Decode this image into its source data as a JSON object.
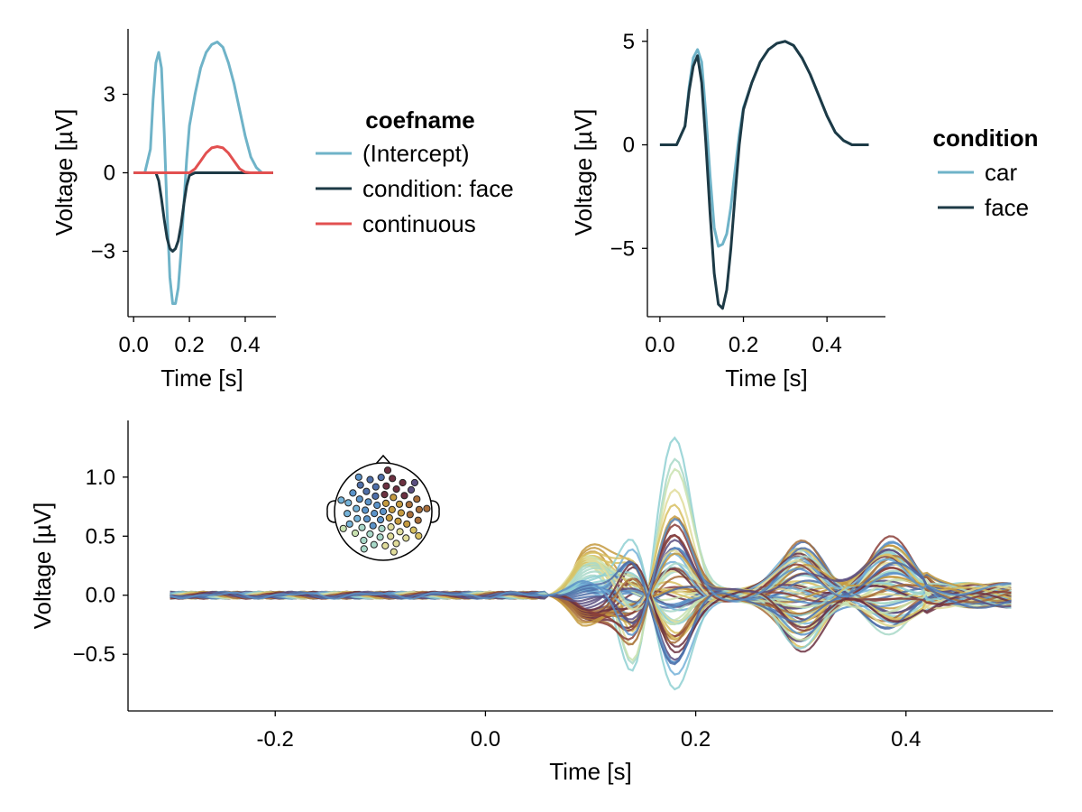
{
  "chart_data": [
    {
      "id": "coef",
      "type": "line",
      "xlabel": "Time [s]",
      "ylabel": "Voltage [µV]",
      "xlim": [
        -0.02,
        0.51
      ],
      "ylim": [
        -5.5,
        5.5
      ],
      "xticks": [
        0.0,
        0.2,
        0.4
      ],
      "xtick_labels": [
        "0.0",
        "0.2",
        "0.4"
      ],
      "yticks": [
        -3,
        0,
        3
      ],
      "ytick_labels": [
        "−3",
        "0",
        "3"
      ],
      "grid": false,
      "legend_title": "coefname",
      "legend_position": "right",
      "series": [
        {
          "name": "(Intercept)",
          "color": "#6fb3c8",
          "points": [
            [
              0,
              0
            ],
            [
              0.02,
              0
            ],
            [
              0.04,
              0
            ],
            [
              0.06,
              0.9
            ],
            [
              0.07,
              2.8
            ],
            [
              0.08,
              4.2
            ],
            [
              0.09,
              4.6
            ],
            [
              0.1,
              4.0
            ],
            [
              0.11,
              1.5
            ],
            [
              0.12,
              -1.5
            ],
            [
              0.13,
              -4.0
            ],
            [
              0.14,
              -5.0
            ],
            [
              0.15,
              -5.0
            ],
            [
              0.16,
              -4.4
            ],
            [
              0.17,
              -3.0
            ],
            [
              0.18,
              -1.2
            ],
            [
              0.19,
              0.5
            ],
            [
              0.2,
              1.8
            ],
            [
              0.22,
              3.0
            ],
            [
              0.24,
              4.0
            ],
            [
              0.26,
              4.6
            ],
            [
              0.28,
              4.9
            ],
            [
              0.3,
              5.0
            ],
            [
              0.32,
              4.8
            ],
            [
              0.34,
              4.2
            ],
            [
              0.36,
              3.4
            ],
            [
              0.38,
              2.4
            ],
            [
              0.4,
              1.4
            ],
            [
              0.42,
              0.6
            ],
            [
              0.44,
              0.2
            ],
            [
              0.46,
              0
            ],
            [
              0.5,
              0
            ]
          ]
        },
        {
          "name": "condition: face",
          "color": "#1d3a46",
          "points": [
            [
              0,
              0
            ],
            [
              0.08,
              0
            ],
            [
              0.09,
              -0.3
            ],
            [
              0.1,
              -1.0
            ],
            [
              0.11,
              -1.8
            ],
            [
              0.12,
              -2.5
            ],
            [
              0.13,
              -2.9
            ],
            [
              0.14,
              -3.0
            ],
            [
              0.15,
              -2.9
            ],
            [
              0.16,
              -2.6
            ],
            [
              0.17,
              -2.0
            ],
            [
              0.18,
              -1.2
            ],
            [
              0.19,
              -0.5
            ],
            [
              0.2,
              -0.1
            ],
            [
              0.22,
              0
            ],
            [
              0.5,
              0
            ]
          ]
        },
        {
          "name": "continuous",
          "color": "#e25050",
          "points": [
            [
              0,
              0
            ],
            [
              0.2,
              0
            ],
            [
              0.22,
              0.15
            ],
            [
              0.24,
              0.45
            ],
            [
              0.26,
              0.75
            ],
            [
              0.28,
              0.95
            ],
            [
              0.3,
              1.0
            ],
            [
              0.32,
              0.95
            ],
            [
              0.34,
              0.75
            ],
            [
              0.36,
              0.45
            ],
            [
              0.38,
              0.15
            ],
            [
              0.4,
              0.02
            ],
            [
              0.42,
              0
            ],
            [
              0.5,
              0
            ]
          ]
        }
      ]
    },
    {
      "id": "cond",
      "type": "line",
      "xlabel": "Time [s]",
      "ylabel": "Voltage [µV]",
      "xlim": [
        -0.03,
        0.54
      ],
      "ylim": [
        -8.3,
        5.6
      ],
      "xticks": [
        0.0,
        0.2,
        0.4
      ],
      "xtick_labels": [
        "0.0",
        "0.2",
        "0.4"
      ],
      "yticks": [
        -5,
        0,
        5
      ],
      "ytick_labels": [
        "−5",
        "0",
        "5"
      ],
      "grid": false,
      "legend_title": "condition",
      "legend_position": "right",
      "series": [
        {
          "name": "car",
          "color": "#6fb3c8",
          "points": [
            [
              0,
              0
            ],
            [
              0.04,
              0
            ],
            [
              0.06,
              0.9
            ],
            [
              0.07,
              2.8
            ],
            [
              0.08,
              4.2
            ],
            [
              0.09,
              4.6
            ],
            [
              0.1,
              4.0
            ],
            [
              0.11,
              1.5
            ],
            [
              0.12,
              -1.5
            ],
            [
              0.13,
              -4.0
            ],
            [
              0.14,
              -4.9
            ],
            [
              0.15,
              -4.8
            ],
            [
              0.16,
              -4.3
            ],
            [
              0.17,
              -3.0
            ],
            [
              0.18,
              -1.2
            ],
            [
              0.19,
              0.5
            ],
            [
              0.2,
              1.8
            ],
            [
              0.22,
              3.0
            ],
            [
              0.24,
              4.0
            ],
            [
              0.26,
              4.6
            ],
            [
              0.28,
              4.9
            ],
            [
              0.3,
              5.0
            ],
            [
              0.32,
              4.8
            ],
            [
              0.34,
              4.2
            ],
            [
              0.36,
              3.4
            ],
            [
              0.38,
              2.4
            ],
            [
              0.4,
              1.4
            ],
            [
              0.42,
              0.6
            ],
            [
              0.44,
              0.2
            ],
            [
              0.46,
              0
            ],
            [
              0.5,
              0
            ]
          ]
        },
        {
          "name": "face",
          "color": "#1d3a46",
          "points": [
            [
              0,
              0
            ],
            [
              0.04,
              0
            ],
            [
              0.06,
              0.9
            ],
            [
              0.07,
              2.6
            ],
            [
              0.08,
              3.8
            ],
            [
              0.09,
              4.3
            ],
            [
              0.1,
              3.0
            ],
            [
              0.11,
              0.1
            ],
            [
              0.12,
              -3.3
            ],
            [
              0.13,
              -6.2
            ],
            [
              0.14,
              -7.7
            ],
            [
              0.15,
              -7.9
            ],
            [
              0.16,
              -7.0
            ],
            [
              0.17,
              -5.0
            ],
            [
              0.18,
              -2.4
            ],
            [
              0.19,
              0
            ],
            [
              0.2,
              1.7
            ],
            [
              0.22,
              3.0
            ],
            [
              0.24,
              4.0
            ],
            [
              0.26,
              4.6
            ],
            [
              0.28,
              4.9
            ],
            [
              0.3,
              5.0
            ],
            [
              0.32,
              4.8
            ],
            [
              0.34,
              4.2
            ],
            [
              0.36,
              3.4
            ],
            [
              0.38,
              2.4
            ],
            [
              0.4,
              1.4
            ],
            [
              0.42,
              0.6
            ],
            [
              0.44,
              0.2
            ],
            [
              0.46,
              0
            ],
            [
              0.5,
              0
            ]
          ]
        }
      ]
    },
    {
      "id": "butterfly",
      "type": "line",
      "xlabel": "Time [s]",
      "ylabel": "Voltage [µV]",
      "xlim": [
        -0.34,
        0.54
      ],
      "ylim": [
        -0.98,
        1.48
      ],
      "xticks": [
        -0.2,
        0.0,
        0.2,
        0.4
      ],
      "xtick_labels": [
        "-0.2",
        "0.0",
        "0.2",
        "0.4"
      ],
      "yticks": [
        -0.5,
        0.0,
        0.5,
        1.0
      ],
      "ytick_labels": [
        "−0.5",
        "0.0",
        "0.5",
        "1.0"
      ],
      "grid": false,
      "legend": "none",
      "note": "64 channels, one line per channel, colored by electrode position in the inset topoplot",
      "x_start": -0.3,
      "x_end": 0.5,
      "channel_peak_values_at_0_18s": [
        1.37,
        1.2,
        1.05,
        0.85,
        0.78,
        0.72,
        0.65,
        0.55,
        0.5,
        0.45,
        0.42,
        0.36,
        0.32,
        0.27,
        0.24,
        0.2,
        0.16,
        0.12,
        0.08,
        0.05,
        0.02,
        -0.02,
        -0.05,
        -0.08,
        -0.12,
        -0.15,
        -0.18,
        -0.21,
        -0.24,
        -0.27,
        -0.3,
        -0.33,
        -0.36,
        -0.4,
        -0.44,
        -0.5,
        -0.56,
        -0.62,
        -0.7,
        -0.76,
        -0.1,
        -0.06,
        0.0,
        0.04,
        0.1,
        0.14,
        0.18,
        0.22,
        -0.04,
        0.06,
        -0.14,
        0.26,
        -0.2,
        0.3,
        -0.28,
        0.34,
        -0.34,
        0.4,
        -0.42,
        0.46,
        -0.48,
        0.52,
        -0.58,
        0.6
      ]
    }
  ],
  "topo_inset": {
    "colors": [
      "#8fd0d2",
      "#a8d8c8",
      "#c9e2b0",
      "#e0dc9a",
      "#d8c060",
      "#c49a40",
      "#a86e3a",
      "#8a3e38",
      "#6b3040",
      "#5a4e80",
      "#4e6ea8",
      "#5a92c8",
      "#74b2d8"
    ]
  }
}
